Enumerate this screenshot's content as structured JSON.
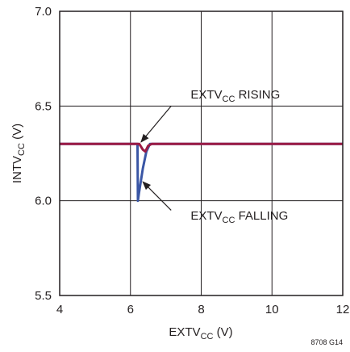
{
  "chart_data": {
    "type": "line",
    "xlabel": {
      "main": "EXTV",
      "sub": "CC",
      "suffix": " (V)"
    },
    "ylabel": {
      "main": "INTV",
      "sub": "CC",
      "suffix": " (V)"
    },
    "xlim": [
      4,
      12
    ],
    "ylim": [
      5.5,
      7.0
    ],
    "x_ticks": [
      "4",
      "6",
      "8",
      "10",
      "12"
    ],
    "y_ticks": [
      "5.5",
      "6.0",
      "6.5",
      "7.0"
    ],
    "grid": true,
    "series": [
      {
        "color": "#3a56a5",
        "points": [
          [
            4,
            6.3
          ],
          [
            6.2,
            6.3
          ],
          [
            6.21,
            6.0
          ],
          [
            6.24,
            6.04
          ],
          [
            6.35,
            6.17
          ],
          [
            6.45,
            6.26
          ],
          [
            6.55,
            6.3
          ],
          [
            12,
            6.3
          ]
        ]
      },
      {
        "color": "#9b1b45",
        "points": [
          [
            4,
            6.3
          ],
          [
            6.25,
            6.3
          ],
          [
            6.35,
            6.27
          ],
          [
            6.42,
            6.26
          ],
          [
            6.5,
            6.29
          ],
          [
            6.6,
            6.3
          ],
          [
            12,
            6.3
          ]
        ]
      }
    ],
    "annotations": [
      {
        "main": "EXTV",
        "sub": "CC",
        "suffix": " RISING",
        "text_at": [
          7.7,
          6.54
        ],
        "arrow_from": [
          7.15,
          6.5
        ],
        "arrow_to": [
          6.3,
          6.31
        ]
      },
      {
        "main": "EXTV",
        "sub": "CC",
        "suffix": " FALLING",
        "text_at": [
          7.7,
          5.9
        ],
        "arrow_from": [
          7.15,
          5.95
        ],
        "arrow_to": [
          6.35,
          6.1
        ]
      }
    ],
    "figure_code": "8708 G14"
  }
}
